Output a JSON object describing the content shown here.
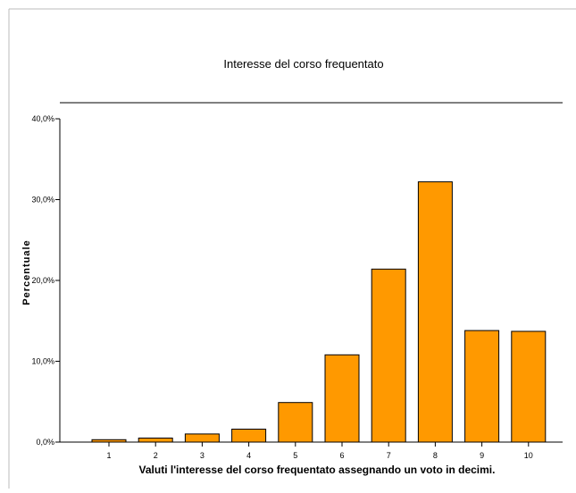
{
  "chart_data": {
    "type": "bar",
    "title": "Interesse del corso frequentato",
    "xlabel": "Valuti l'interesse del corso frequentato assegnando un voto in decimi.",
    "ylabel": "Percentuale",
    "categories": [
      "1",
      "2",
      "3",
      "4",
      "5",
      "6",
      "7",
      "8",
      "9",
      "10"
    ],
    "values": [
      0.3,
      0.5,
      1.0,
      1.6,
      4.9,
      10.8,
      21.4,
      32.2,
      13.8,
      13.7
    ],
    "ylim": [
      0,
      40
    ],
    "yticks": [
      {
        "value": 0,
        "label": "0,0%"
      },
      {
        "value": 10,
        "label": "10,0%"
      },
      {
        "value": 20,
        "label": "20,0%"
      },
      {
        "value": 30,
        "label": "30,0%"
      },
      {
        "value": 40,
        "label": "40,0%"
      }
    ],
    "grid": false,
    "colors": {
      "bar_fill": "#ff9900",
      "bar_stroke": "#000000"
    }
  }
}
